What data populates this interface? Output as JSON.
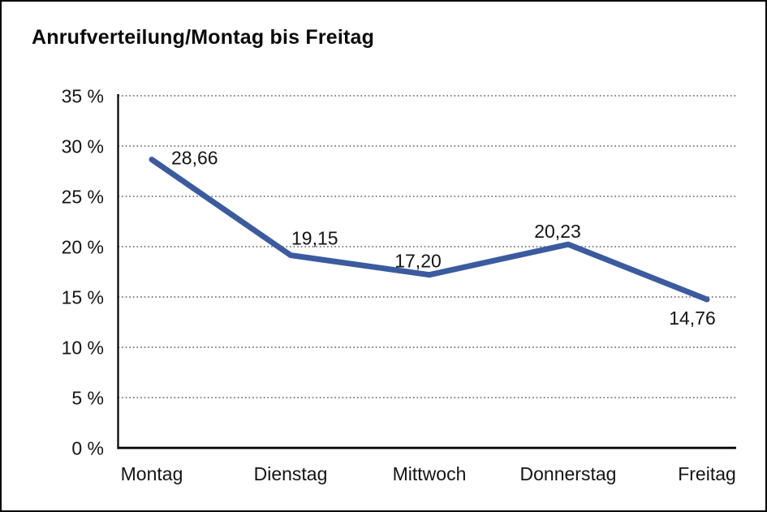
{
  "window": {
    "background": "#ffffff",
    "border_color": "#000000"
  },
  "chart_data": {
    "type": "line",
    "title": "Anrufverteilung/Montag bis Freitag",
    "xlabel": "",
    "ylabel": "",
    "categories": [
      "Montag",
      "Dienstag",
      "Mittwoch",
      "Donnerstag",
      "Freitag"
    ],
    "series": [
      {
        "name": "Anrufverteilung",
        "values": [
          28.66,
          19.15,
          17.2,
          20.23,
          14.76
        ]
      }
    ],
    "value_labels": [
      "28,66",
      "19,15",
      "17,20",
      "20,23",
      "14,76"
    ],
    "y_ticks": [
      {
        "value": 0,
        "label": "0 %"
      },
      {
        "value": 5,
        "label": "5 %"
      },
      {
        "value": 10,
        "label": "10 %"
      },
      {
        "value": 15,
        "label": "15 %"
      },
      {
        "value": 20,
        "label": "20 %"
      },
      {
        "value": 25,
        "label": "25 %"
      },
      {
        "value": 30,
        "label": "30 %"
      },
      {
        "value": 35,
        "label": "35 %"
      }
    ],
    "ylim": [
      0,
      35
    ],
    "y_step": 5,
    "grid": "horizontal-dotted",
    "legend": "none",
    "colors": {
      "line": "#3B5BA0",
      "grid": "#5a5a5a",
      "axis": "#000000",
      "text": "#141414"
    }
  }
}
